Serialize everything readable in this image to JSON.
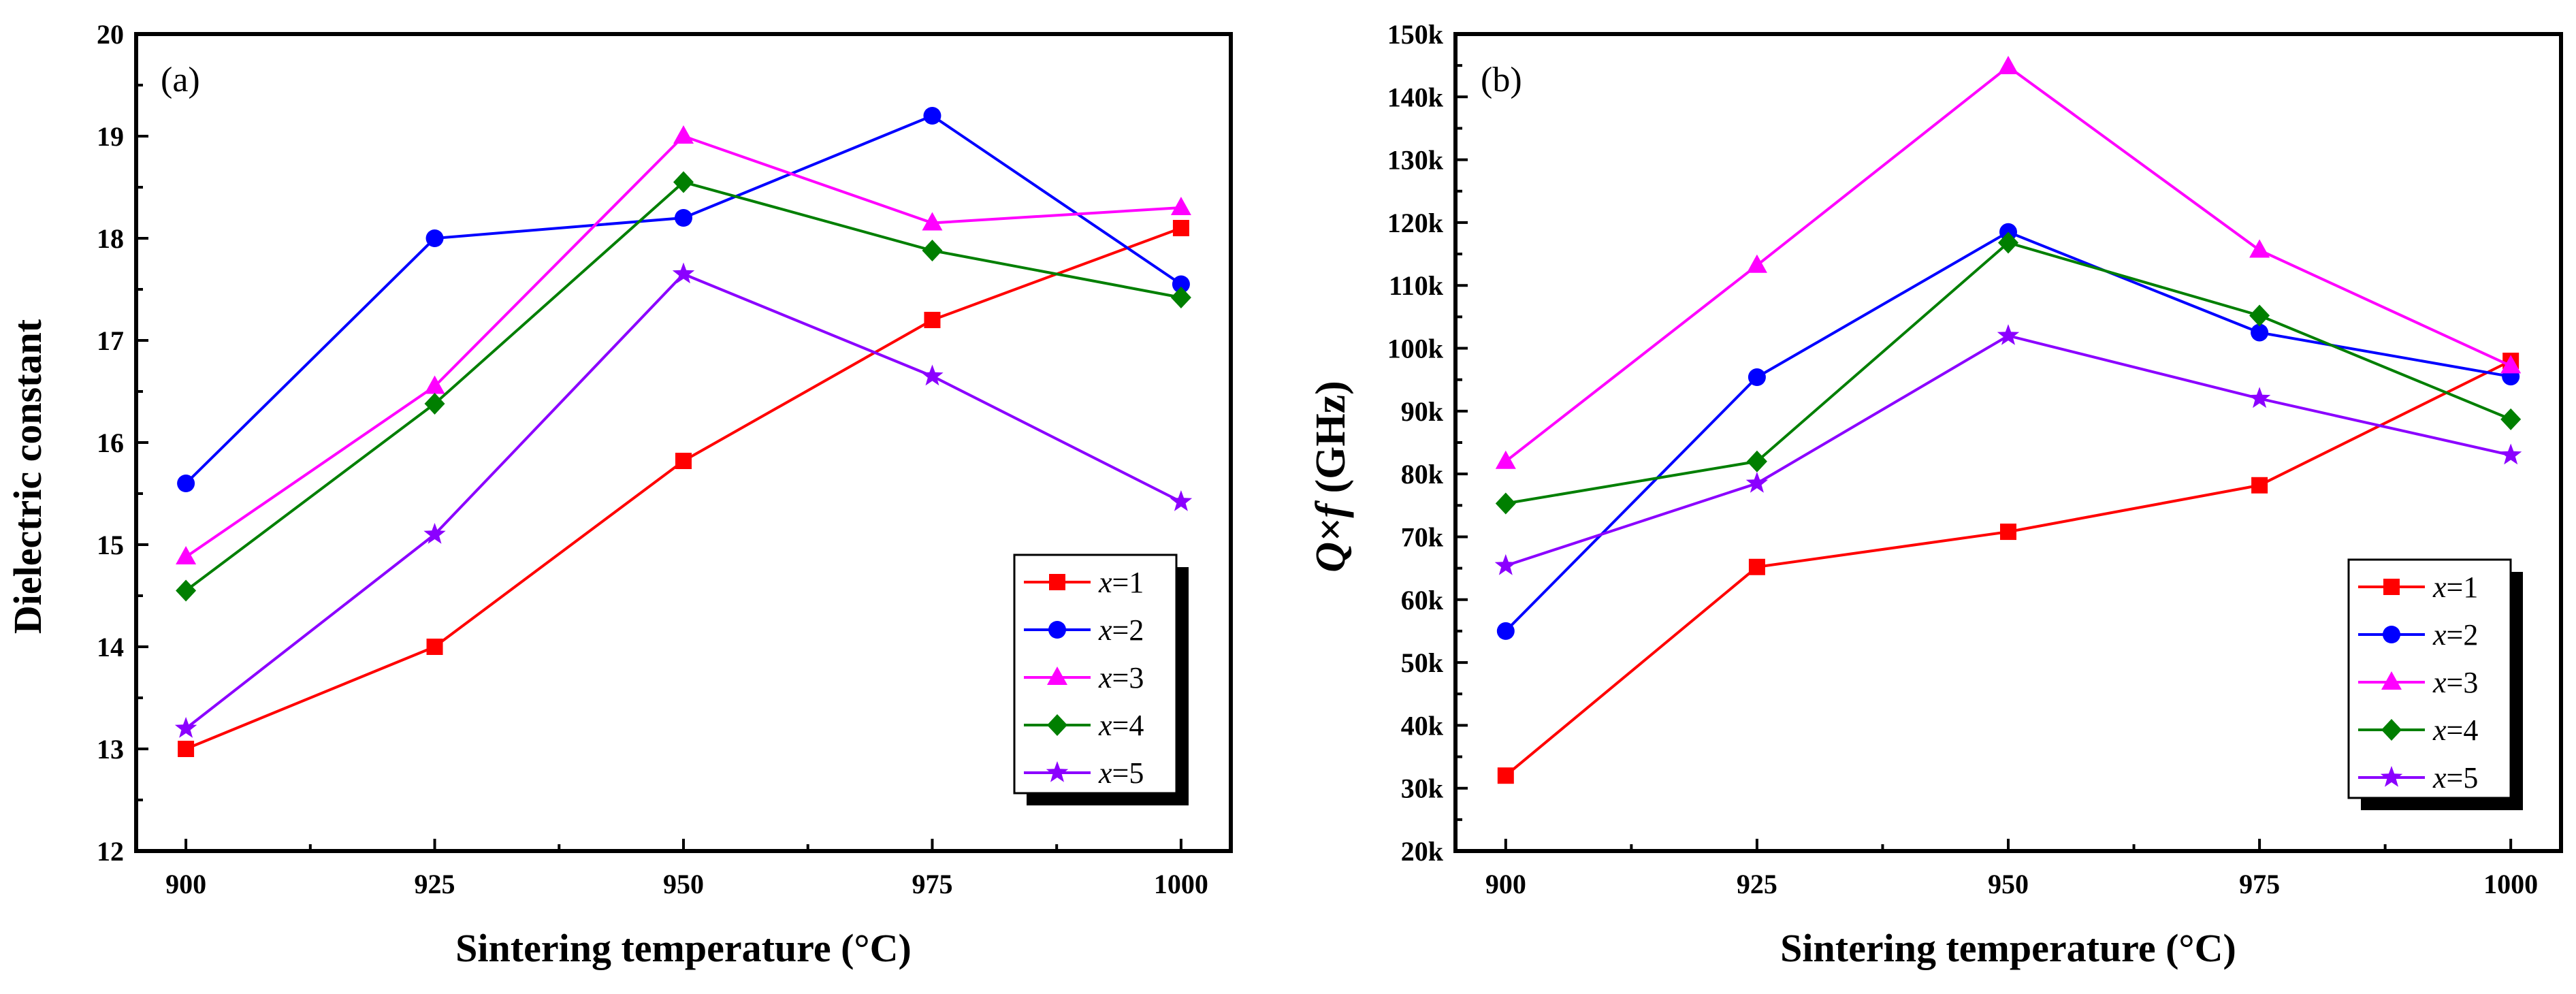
{
  "chart_data": [
    {
      "type": "line",
      "panel_label": "(a)",
      "xlabel": "Sintering temperature (°C)",
      "ylabel": "Dielectric constant",
      "categories": [
        "900",
        "925",
        "950",
        "975",
        "1000"
      ],
      "x": [
        900,
        925,
        950,
        975,
        1000
      ],
      "xlim": [
        895,
        1005
      ],
      "ylim": [
        12,
        20
      ],
      "yticks": [
        12,
        13,
        14,
        15,
        16,
        17,
        18,
        19,
        20
      ],
      "ytick_labels": [
        "12",
        "13",
        "14",
        "15",
        "16",
        "17",
        "18",
        "19",
        "20"
      ],
      "legend_position": "bottom-right",
      "series": [
        {
          "name": "x=1",
          "var": "x",
          "eq": "=1",
          "color": "#ff0000",
          "marker": "square",
          "values": [
            13.0,
            14.0,
            15.82,
            17.2,
            18.1
          ]
        },
        {
          "name": "x=2",
          "var": "x",
          "eq": "=2",
          "color": "#0000ff",
          "marker": "circle",
          "values": [
            15.6,
            18.0,
            18.2,
            19.2,
            17.55
          ]
        },
        {
          "name": "x=3",
          "var": "x",
          "eq": "=3",
          "color": "#ff00ff",
          "marker": "triangle",
          "values": [
            14.88,
            16.55,
            19.0,
            18.15,
            18.3
          ]
        },
        {
          "name": "x=4",
          "var": "x",
          "eq": "=4",
          "color": "#007f00",
          "marker": "diamond",
          "values": [
            14.55,
            16.38,
            18.55,
            17.88,
            17.42
          ]
        },
        {
          "name": "x=5",
          "var": "x",
          "eq": "=5",
          "color": "#8b00ff",
          "marker": "star",
          "values": [
            13.2,
            15.1,
            17.65,
            16.65,
            15.42
          ]
        }
      ]
    },
    {
      "type": "line",
      "panel_label": "(b)",
      "xlabel": "Sintering temperature (°C)",
      "ylabel_italic": "Q×f",
      "ylabel_unit": " (GHz)",
      "categories": [
        "900",
        "925",
        "950",
        "975",
        "1000"
      ],
      "x": [
        900,
        925,
        950,
        975,
        1000
      ],
      "xlim": [
        895,
        1005
      ],
      "ylim": [
        20000,
        150000
      ],
      "yticks": [
        20000,
        30000,
        40000,
        50000,
        60000,
        70000,
        80000,
        90000,
        100000,
        110000,
        120000,
        130000,
        140000,
        150000
      ],
      "ytick_labels": [
        "20k",
        "30k",
        "40k",
        "50k",
        "60k",
        "70k",
        "80k",
        "90k",
        "100k",
        "110k",
        "120k",
        "130k",
        "140k",
        "150k"
      ],
      "legend_position": "bottom-right",
      "series": [
        {
          "name": "x=1",
          "var": "x",
          "eq": "=1",
          "color": "#ff0000",
          "marker": "square",
          "values": [
            32000,
            65200,
            70800,
            78200,
            98000
          ]
        },
        {
          "name": "x=2",
          "var": "x",
          "eq": "=2",
          "color": "#0000ff",
          "marker": "circle",
          "values": [
            55000,
            95400,
            118500,
            102500,
            95500
          ]
        },
        {
          "name": "x=3",
          "var": "x",
          "eq": "=3",
          "color": "#ff00ff",
          "marker": "triangle",
          "values": [
            82000,
            113200,
            144800,
            115600,
            97200
          ]
        },
        {
          "name": "x=4",
          "var": "x",
          "eq": "=4",
          "color": "#007f00",
          "marker": "diamond",
          "values": [
            75300,
            82000,
            116800,
            105200,
            88700
          ]
        },
        {
          "name": "x=5",
          "var": "x",
          "eq": "=5",
          "color": "#8b00ff",
          "marker": "star",
          "values": [
            65400,
            78500,
            102000,
            92000,
            83000
          ]
        }
      ]
    }
  ]
}
